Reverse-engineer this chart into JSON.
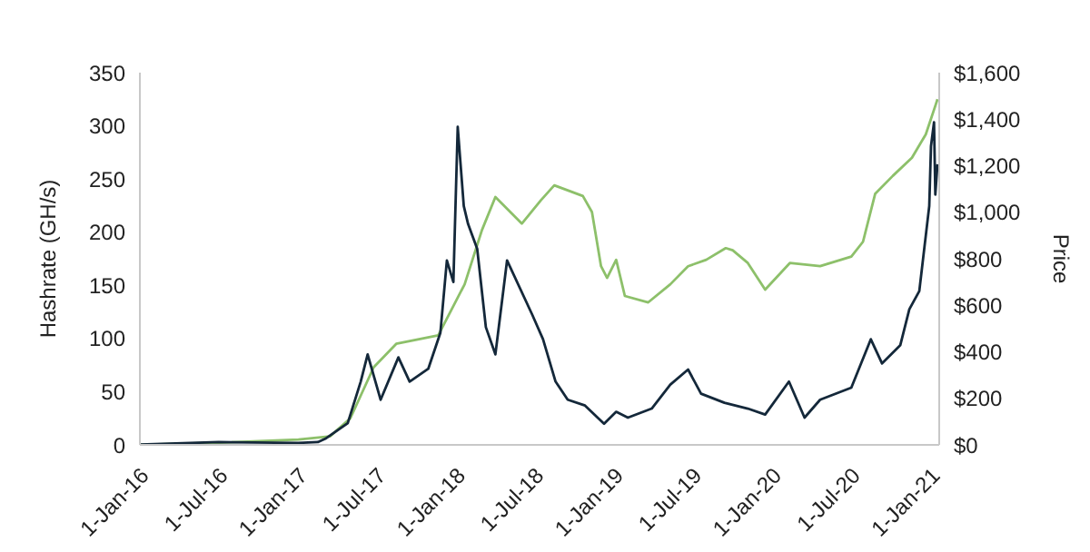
{
  "chart_data": {
    "type": "line",
    "ylabel": "Hashrate (GH/s)",
    "y2label": "Price",
    "xlim": [
      "2016-01-01",
      "2021-01-20"
    ],
    "xticks": [
      {
        "value": "2016-01-01",
        "label": "1-Jan-16"
      },
      {
        "value": "2016-07-01",
        "label": "1-Jul-16"
      },
      {
        "value": "2017-01-01",
        "label": "1-Jan-17"
      },
      {
        "value": "2017-07-01",
        "label": "1-Jul-17"
      },
      {
        "value": "2018-01-01",
        "label": "1-Jan-18"
      },
      {
        "value": "2018-07-01",
        "label": "1-Jul-18"
      },
      {
        "value": "2019-01-01",
        "label": "1-Jan-19"
      },
      {
        "value": "2019-07-01",
        "label": "1-Jul-19"
      },
      {
        "value": "2020-01-01",
        "label": "1-Jan-20"
      },
      {
        "value": "2020-07-01",
        "label": "1-Jul-20"
      },
      {
        "value": "2021-01-01",
        "label": "1-Jan-21"
      }
    ],
    "ylim": [
      0,
      350
    ],
    "yticks": [
      0,
      50,
      100,
      150,
      200,
      250,
      300,
      350
    ],
    "y2lim": [
      0,
      1600
    ],
    "y2ticks": [
      {
        "value": 0,
        "label": "$0"
      },
      {
        "value": 200,
        "label": "$200"
      },
      {
        "value": 400,
        "label": "$400"
      },
      {
        "value": 600,
        "label": "$600"
      },
      {
        "value": 800,
        "label": "$800"
      },
      {
        "value": 1000,
        "label": "$1,000"
      },
      {
        "value": 1200,
        "label": "$1,200"
      },
      {
        "value": 1400,
        "label": "$1,400"
      },
      {
        "value": 1600,
        "label": "$1,600"
      }
    ],
    "grid": false,
    "legend": false,
    "marker": "none",
    "line_style": "solid",
    "series": [
      {
        "color": "#8dc06a",
        "axis": "y",
        "x": [
          "2016-01-01",
          "2016-07-01",
          "2017-01-01",
          "2017-03-15",
          "2017-05-01",
          "2017-06-24",
          "2017-08-15",
          "2017-11-20",
          "2018-01-20",
          "2018-03-01",
          "2018-04-01",
          "2018-06-01",
          "2018-07-15",
          "2018-08-15",
          "2018-10-20",
          "2018-11-10",
          "2018-12-01",
          "2018-12-15",
          "2019-01-05",
          "2019-01-25",
          "2019-03-20",
          "2019-05-10",
          "2019-06-20",
          "2019-08-01",
          "2019-09-15",
          "2019-10-01",
          "2019-11-05",
          "2019-12-15",
          "2020-02-10",
          "2020-04-20",
          "2020-07-01",
          "2020-07-28",
          "2020-08-25",
          "2020-10-05",
          "2020-11-18",
          "2020-12-20",
          "2021-01-12",
          "2021-01-16"
        ],
        "values": [
          0,
          2,
          5,
          8,
          25,
          73,
          95,
          103,
          151,
          202,
          233,
          208,
          230,
          244,
          234,
          219,
          168,
          157,
          174,
          140,
          134,
          151,
          168,
          174,
          185,
          183,
          171,
          146,
          171,
          168,
          177,
          191,
          236,
          253,
          270,
          292,
          320,
          325
        ]
      },
      {
        "color": "#14283a",
        "axis": "y2",
        "x": [
          "2016-01-01",
          "2016-07-01",
          "2017-01-01",
          "2017-02-15",
          "2017-03-04",
          "2017-04-25",
          "2017-05-25",
          "2017-06-10",
          "2017-07-10",
          "2017-08-20",
          "2017-09-15",
          "2017-10-28",
          "2017-11-25",
          "2017-12-10",
          "2017-12-25",
          "2018-01-04",
          "2018-01-18",
          "2018-01-28",
          "2018-02-18",
          "2018-03-10",
          "2018-04-01",
          "2018-04-28",
          "2018-06-25",
          "2018-07-20",
          "2018-08-18",
          "2018-09-15",
          "2018-10-25",
          "2018-12-08",
          "2019-01-05",
          "2019-02-01",
          "2019-03-28",
          "2019-05-10",
          "2019-06-20",
          "2019-07-20",
          "2019-09-12",
          "2019-11-05",
          "2019-12-15",
          "2020-02-08",
          "2020-03-15",
          "2020-04-20",
          "2020-07-01",
          "2020-08-15",
          "2020-09-10",
          "2020-10-22",
          "2020-11-12",
          "2020-12-05",
          "2020-12-28",
          "2021-01-01",
          "2021-01-08",
          "2021-01-11",
          "2021-01-16"
        ],
        "values": [
          1,
          12,
          8,
          12,
          26,
          93,
          272,
          389,
          194,
          376,
          272,
          327,
          482,
          793,
          700,
          1367,
          1027,
          949,
          843,
          506,
          389,
          793,
          560,
          454,
          272,
          194,
          169,
          91,
          142,
          117,
          156,
          259,
          324,
          220,
          181,
          156,
          130,
          272,
          117,
          194,
          246,
          454,
          350,
          428,
          583,
          661,
          1027,
          1284,
          1387,
          1076,
          1206
        ]
      }
    ]
  }
}
